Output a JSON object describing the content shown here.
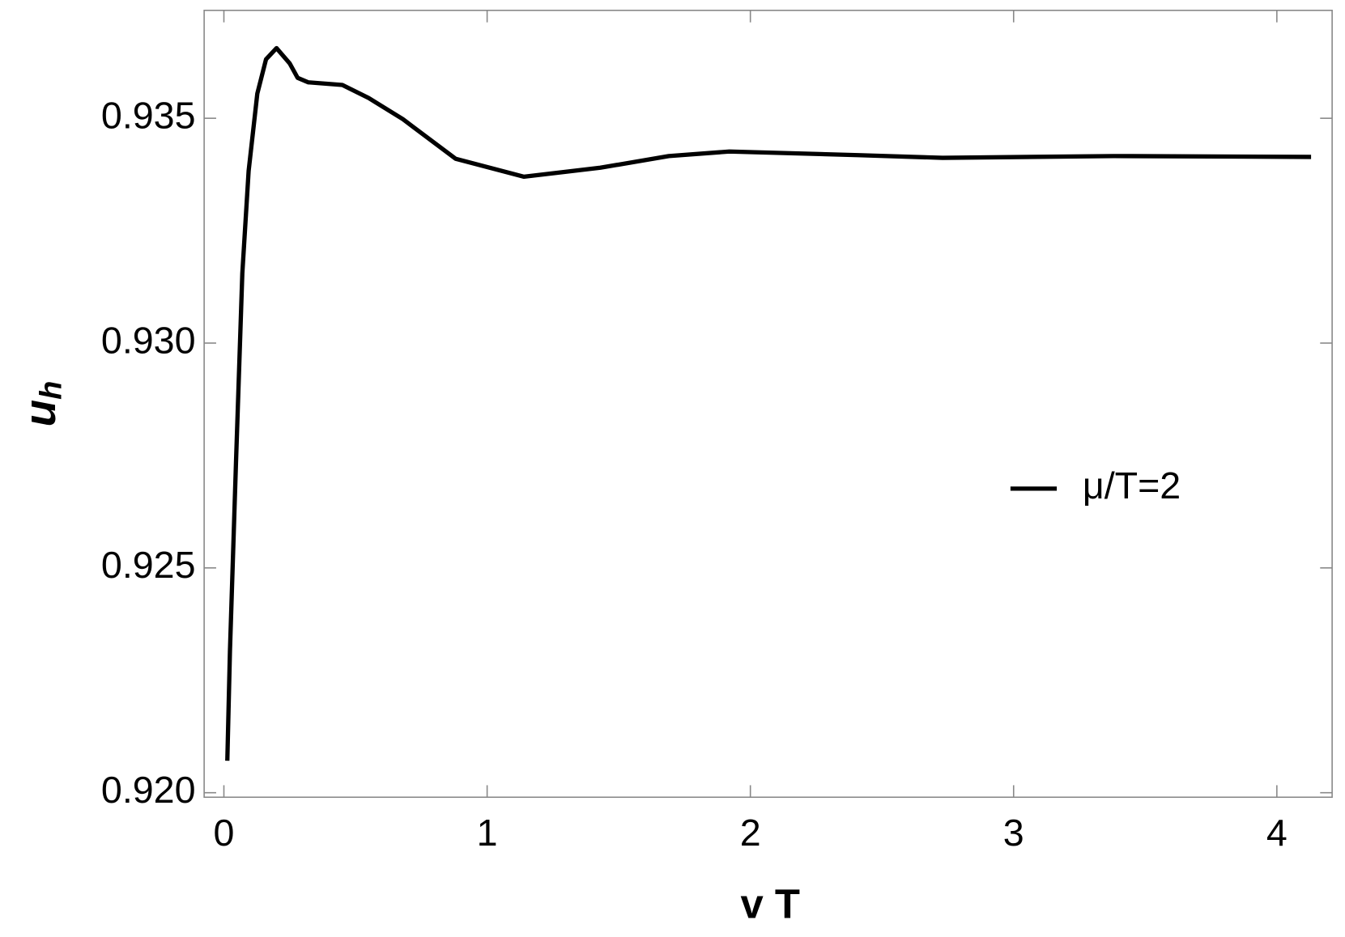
{
  "chart_data": {
    "type": "line",
    "xlabel": "v T",
    "ylabel": "u",
    "ylabel_subscript": "h",
    "x": [
      0.013,
      0.023,
      0.046,
      0.07,
      0.094,
      0.127,
      0.16,
      0.2,
      0.25,
      0.28,
      0.32,
      0.45,
      0.55,
      0.68,
      0.88,
      1.14,
      1.43,
      1.69,
      1.92,
      2.41,
      2.73,
      3.38,
      4.13
    ],
    "series": [
      {
        "name": "μ/T=2",
        "color": "#000000",
        "values": [
          0.92071,
          0.92315,
          0.92735,
          0.93155,
          0.93383,
          0.93555,
          0.93631,
          0.93656,
          0.93622,
          0.9359,
          0.9358,
          0.93574,
          0.93545,
          0.93498,
          0.9341,
          0.9337,
          0.9339,
          0.93416,
          0.93426,
          0.93418,
          0.93412,
          0.93416,
          0.93414
        ]
      }
    ],
    "xlim": [
      -0.075,
      4.21
    ],
    "ylim": [
      0.9199,
      0.9374
    ],
    "xticks": [
      0,
      1,
      2,
      3,
      4
    ],
    "yticks": [
      {
        "value": 0.92,
        "label": "0.920"
      },
      0.925,
      {
        "value": 0.93,
        "label": "0.930"
      },
      0.935
    ],
    "legend": "right"
  }
}
